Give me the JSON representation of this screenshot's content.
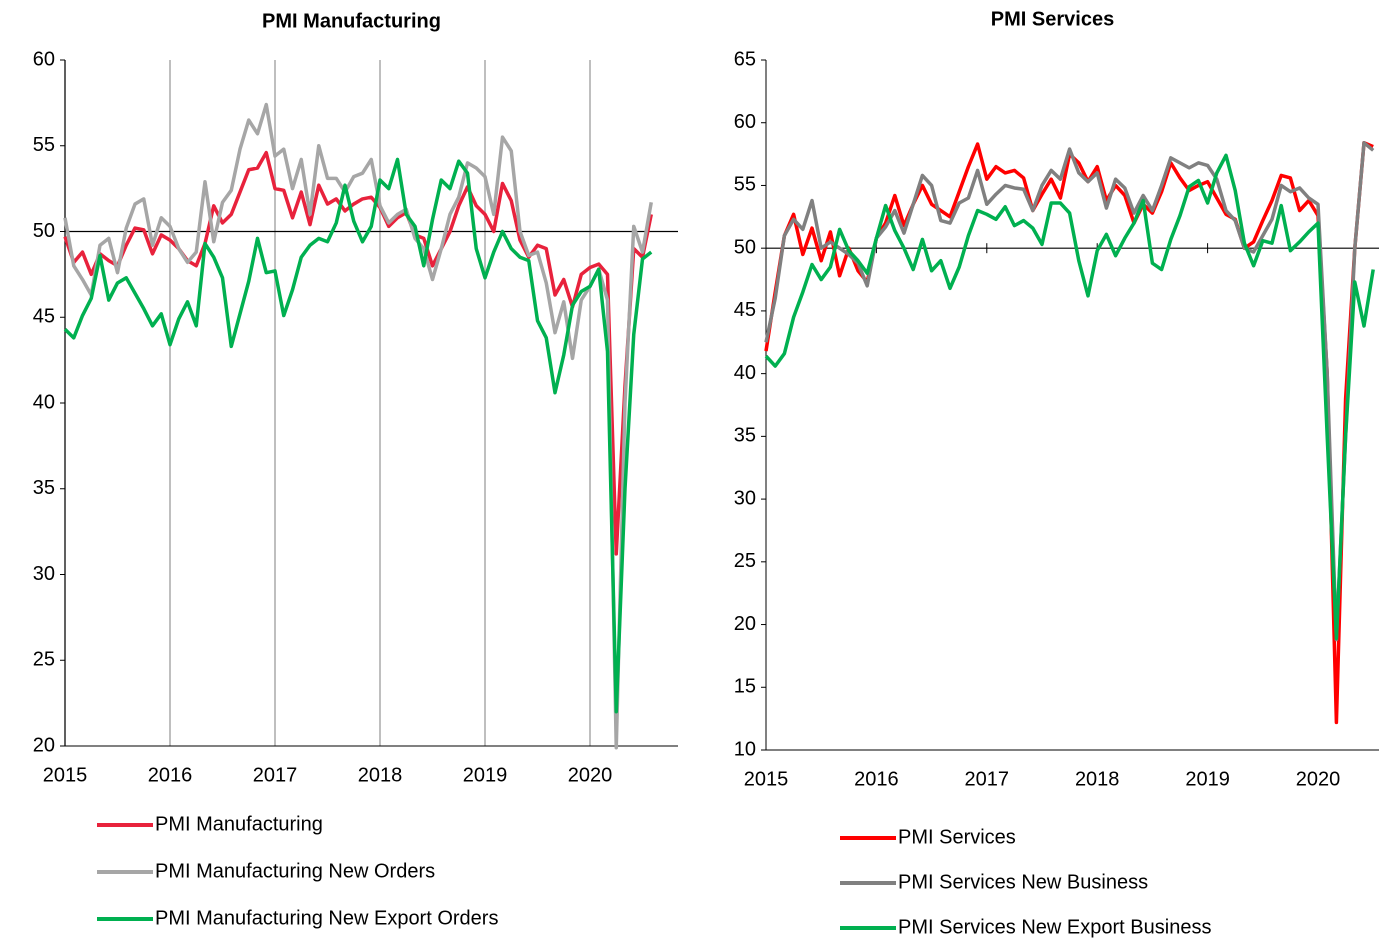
{
  "chart_data": [
    {
      "type": "line",
      "title": "PMI Manufacturing",
      "categories": [
        "2015",
        null,
        null,
        null,
        null,
        null,
        null,
        null,
        null,
        null,
        null,
        null,
        "2016",
        null,
        null,
        null,
        null,
        null,
        null,
        null,
        null,
        null,
        null,
        null,
        "2017",
        null,
        null,
        null,
        null,
        null,
        null,
        null,
        null,
        null,
        null,
        null,
        "2018",
        null,
        null,
        null,
        null,
        null,
        null,
        null,
        null,
        null,
        null,
        null,
        "2019",
        null,
        null,
        null,
        null,
        null,
        null,
        null,
        null,
        null,
        null,
        null,
        "2020",
        null,
        null,
        null,
        null,
        null,
        null,
        null
      ],
      "ylim": [
        20,
        60
      ],
      "yticks": [
        20,
        25,
        30,
        35,
        40,
        45,
        50,
        55,
        60
      ],
      "reference_line": 50,
      "vertical_grid": true,
      "series": [
        {
          "name": "PMI Manufacturing",
          "color": "#e8223c",
          "values": [
            49.7,
            48.2,
            48.8,
            47.5,
            48.7,
            48.3,
            48.0,
            49.2,
            50.2,
            50.1,
            48.7,
            49.8,
            49.5,
            49.0,
            48.3,
            48.0,
            49.3,
            51.5,
            50.5,
            51.0,
            52.3,
            53.6,
            53.7,
            54.6,
            52.5,
            52.4,
            50.8,
            52.3,
            50.4,
            52.7,
            51.6,
            51.9,
            51.2,
            51.6,
            51.9,
            52.0,
            51.4,
            50.3,
            50.8,
            51.1,
            49.8,
            49.6,
            48.0,
            49.0,
            50.0,
            51.5,
            52.6,
            51.5,
            51.0,
            50.0,
            52.8,
            51.8,
            49.5,
            48.5,
            49.2,
            49.0,
            46.3,
            47.2,
            45.6,
            47.5,
            47.9,
            48.1,
            47.5,
            31.2,
            41.0,
            49.0,
            48.5,
            51.0
          ]
        },
        {
          "name": "PMI Manufacturing New Orders",
          "color": "#a6a6a6",
          "values": [
            50.8,
            48.0,
            47.2,
            46.3,
            49.2,
            49.6,
            47.6,
            50.2,
            51.6,
            51.9,
            49.2,
            50.8,
            50.3,
            49.0,
            48.2,
            48.8,
            52.9,
            49.4,
            51.7,
            52.4,
            54.8,
            56.5,
            55.7,
            57.4,
            54.4,
            54.8,
            52.5,
            54.2,
            51.0,
            55.0,
            53.1,
            53.1,
            52.3,
            53.2,
            53.4,
            54.2,
            51.5,
            50.5,
            51.0,
            51.3,
            49.6,
            49.0,
            47.2,
            49.0,
            51.0,
            52.0,
            54.0,
            53.7,
            53.2,
            51.0,
            55.5,
            54.7,
            50.0,
            48.6,
            48.8,
            47.0,
            44.1,
            45.9,
            42.6,
            46.0,
            46.8,
            47.8,
            46.0,
            19.9,
            40.0,
            50.3,
            48.8,
            51.7
          ]
        },
        {
          "name": "PMI Manufacturing New Export Orders",
          "color": "#00b050",
          "values": [
            44.3,
            43.8,
            45.1,
            46.1,
            48.6,
            46.0,
            47.0,
            47.3,
            46.4,
            45.5,
            44.5,
            45.2,
            43.4,
            44.9,
            45.9,
            44.5,
            49.3,
            48.5,
            47.3,
            43.3,
            45.2,
            47.1,
            49.6,
            47.6,
            47.7,
            45.1,
            46.6,
            48.5,
            49.2,
            49.6,
            49.4,
            50.5,
            52.7,
            50.6,
            49.4,
            50.3,
            53.0,
            52.5,
            54.2,
            51.0,
            50.3,
            48.0,
            50.7,
            53.0,
            52.5,
            54.1,
            53.4,
            49.0,
            47.3,
            48.8,
            50.0,
            49.0,
            48.5,
            48.3,
            44.8,
            43.8,
            40.6,
            42.8,
            45.7,
            46.5,
            46.8,
            47.8,
            43.0,
            22.0,
            35.0,
            44.0,
            48.4,
            48.8
          ]
        }
      ]
    },
    {
      "type": "line",
      "title": "PMI Services",
      "categories": [
        "2015",
        null,
        null,
        null,
        null,
        null,
        null,
        null,
        null,
        null,
        null,
        null,
        "2016",
        null,
        null,
        null,
        null,
        null,
        null,
        null,
        null,
        null,
        null,
        null,
        "2017",
        null,
        null,
        null,
        null,
        null,
        null,
        null,
        null,
        null,
        null,
        null,
        "2018",
        null,
        null,
        null,
        null,
        null,
        null,
        null,
        null,
        null,
        null,
        null,
        "2019",
        null,
        null,
        null,
        null,
        null,
        null,
        null,
        null,
        null,
        null,
        null,
        "2020",
        null,
        null,
        null,
        null,
        null,
        null
      ],
      "ylim": [
        10,
        65
      ],
      "yticks": [
        10,
        15,
        20,
        25,
        30,
        35,
        40,
        45,
        50,
        55,
        60,
        65
      ],
      "reference_line": 50,
      "vertical_grid": false,
      "series": [
        {
          "name": "PMI Services",
          "color": "#ff0000",
          "values": [
            41.8,
            46.5,
            51.0,
            52.7,
            49.5,
            51.6,
            49.0,
            51.3,
            47.8,
            50.0,
            48.2,
            47.3,
            50.8,
            52.0,
            54.2,
            51.8,
            53.5,
            55.0,
            53.5,
            53.0,
            52.5,
            54.5,
            56.5,
            58.3,
            55.5,
            56.5,
            56.0,
            56.2,
            55.6,
            53.0,
            54.3,
            55.5,
            54.0,
            57.5,
            56.8,
            55.3,
            56.5,
            53.8,
            55.0,
            54.2,
            52.0,
            53.5,
            52.8,
            54.5,
            56.8,
            55.6,
            54.6,
            55.0,
            55.3,
            54.0,
            52.7,
            52.3,
            50.0,
            50.5,
            52.2,
            53.8,
            55.8,
            55.6,
            53.0,
            53.8,
            52.6,
            40.0,
            12.2,
            38.0,
            50.0,
            58.4,
            58.1
          ]
        },
        {
          "name": "PMI Services New Business",
          "color": "#808080",
          "values": [
            42.5,
            46.0,
            51.0,
            52.3,
            51.5,
            53.8,
            50.0,
            50.5,
            50.0,
            49.5,
            48.8,
            47.0,
            50.8,
            51.7,
            53.0,
            51.2,
            53.5,
            55.8,
            55.0,
            52.2,
            52.0,
            53.6,
            54.0,
            56.2,
            53.5,
            54.3,
            55.0,
            54.8,
            54.7,
            53.0,
            55.0,
            56.2,
            55.5,
            57.9,
            56.0,
            55.3,
            56.0,
            53.2,
            55.5,
            54.8,
            52.8,
            54.2,
            53.0,
            55.0,
            57.2,
            56.8,
            56.4,
            56.8,
            56.6,
            55.5,
            53.0,
            52.2,
            50.0,
            49.7,
            51.0,
            52.3,
            55.0,
            54.5,
            54.8,
            54.0,
            53.5,
            40.0,
            18.8,
            35.0,
            50.0,
            58.4,
            57.8
          ]
        },
        {
          "name": "PMI Services New Export Business",
          "color": "#00b050",
          "values": [
            41.4,
            40.6,
            41.6,
            44.5,
            46.5,
            48.7,
            47.5,
            48.5,
            51.5,
            49.8,
            49.0,
            48.0,
            50.8,
            53.4,
            51.4,
            50.0,
            48.3,
            50.7,
            48.2,
            49.0,
            46.8,
            48.5,
            51.0,
            53.0,
            52.7,
            52.3,
            53.3,
            51.8,
            52.2,
            51.6,
            50.3,
            53.6,
            53.6,
            52.8,
            49.0,
            46.2,
            49.8,
            51.1,
            49.4,
            50.8,
            52.0,
            53.8,
            48.8,
            48.3,
            50.7,
            52.6,
            54.9,
            55.4,
            53.6,
            56.0,
            57.4,
            54.6,
            50.4,
            48.6,
            50.6,
            50.4,
            53.4,
            49.8,
            50.5,
            51.3,
            52.0,
            35.0,
            18.9,
            35.0,
            47.3,
            43.8,
            48.3
          ]
        }
      ]
    }
  ]
}
